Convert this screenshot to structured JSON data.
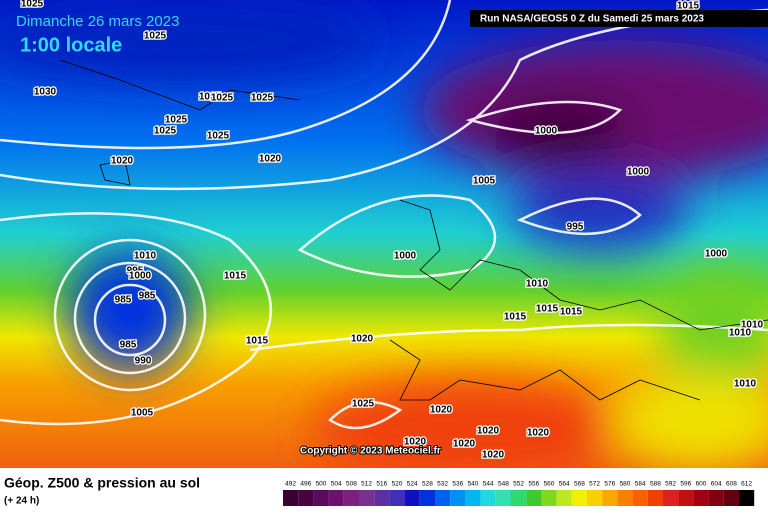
{
  "header": {
    "date": "Dimanche 26 mars 2023",
    "time": "1:00 locale",
    "run": "Run NASA/GEOS5 0 Z du Samedi 25 mars 2023"
  },
  "copyright": "Copyright © 2023 Meteociel.fr",
  "legend": {
    "title": "Géop. Z500 & pression au sol",
    "subtitle": "(+ 24 h)",
    "ticks": [
      492,
      496,
      500,
      504,
      508,
      512,
      516,
      520,
      524,
      528,
      532,
      536,
      540,
      544,
      548,
      552,
      556,
      560,
      564,
      568,
      572,
      576,
      580,
      584,
      588,
      592,
      596,
      600,
      604,
      608,
      612
    ],
    "colors": [
      "#3a0030",
      "#4b0040",
      "#5c0a5c",
      "#6e1070",
      "#7d2080",
      "#7a3090",
      "#5c30a0",
      "#4030b8",
      "#1010c0",
      "#0030e0",
      "#0060f0",
      "#0090f0",
      "#00b8f0",
      "#20d8e0",
      "#30e0b0",
      "#30d870",
      "#40c830",
      "#80d820",
      "#c0e820",
      "#f0f000",
      "#f8d000",
      "#f8a800",
      "#f88000",
      "#f86000",
      "#f04000",
      "#e02020",
      "#c01010",
      "#a00010",
      "#800010",
      "#600010",
      "#000000"
    ]
  },
  "isobar_labels": [
    "1025",
    "1025",
    "1030",
    "1025",
    "1025",
    "1025",
    "1025",
    "1025",
    "1025",
    "1020",
    "1020",
    "1015",
    "1000",
    "1000",
    "1005",
    "995",
    "1000",
    "1000",
    "1010",
    "995",
    "1000",
    "985",
    "985",
    "985",
    "990",
    "1015",
    "1015",
    "1020",
    "1010",
    "1015",
    "1015",
    "1015",
    "1010",
    "1010",
    "1010",
    "1005",
    "1025",
    "1020",
    "1020",
    "1020",
    "1020",
    "1020",
    "1020"
  ]
}
